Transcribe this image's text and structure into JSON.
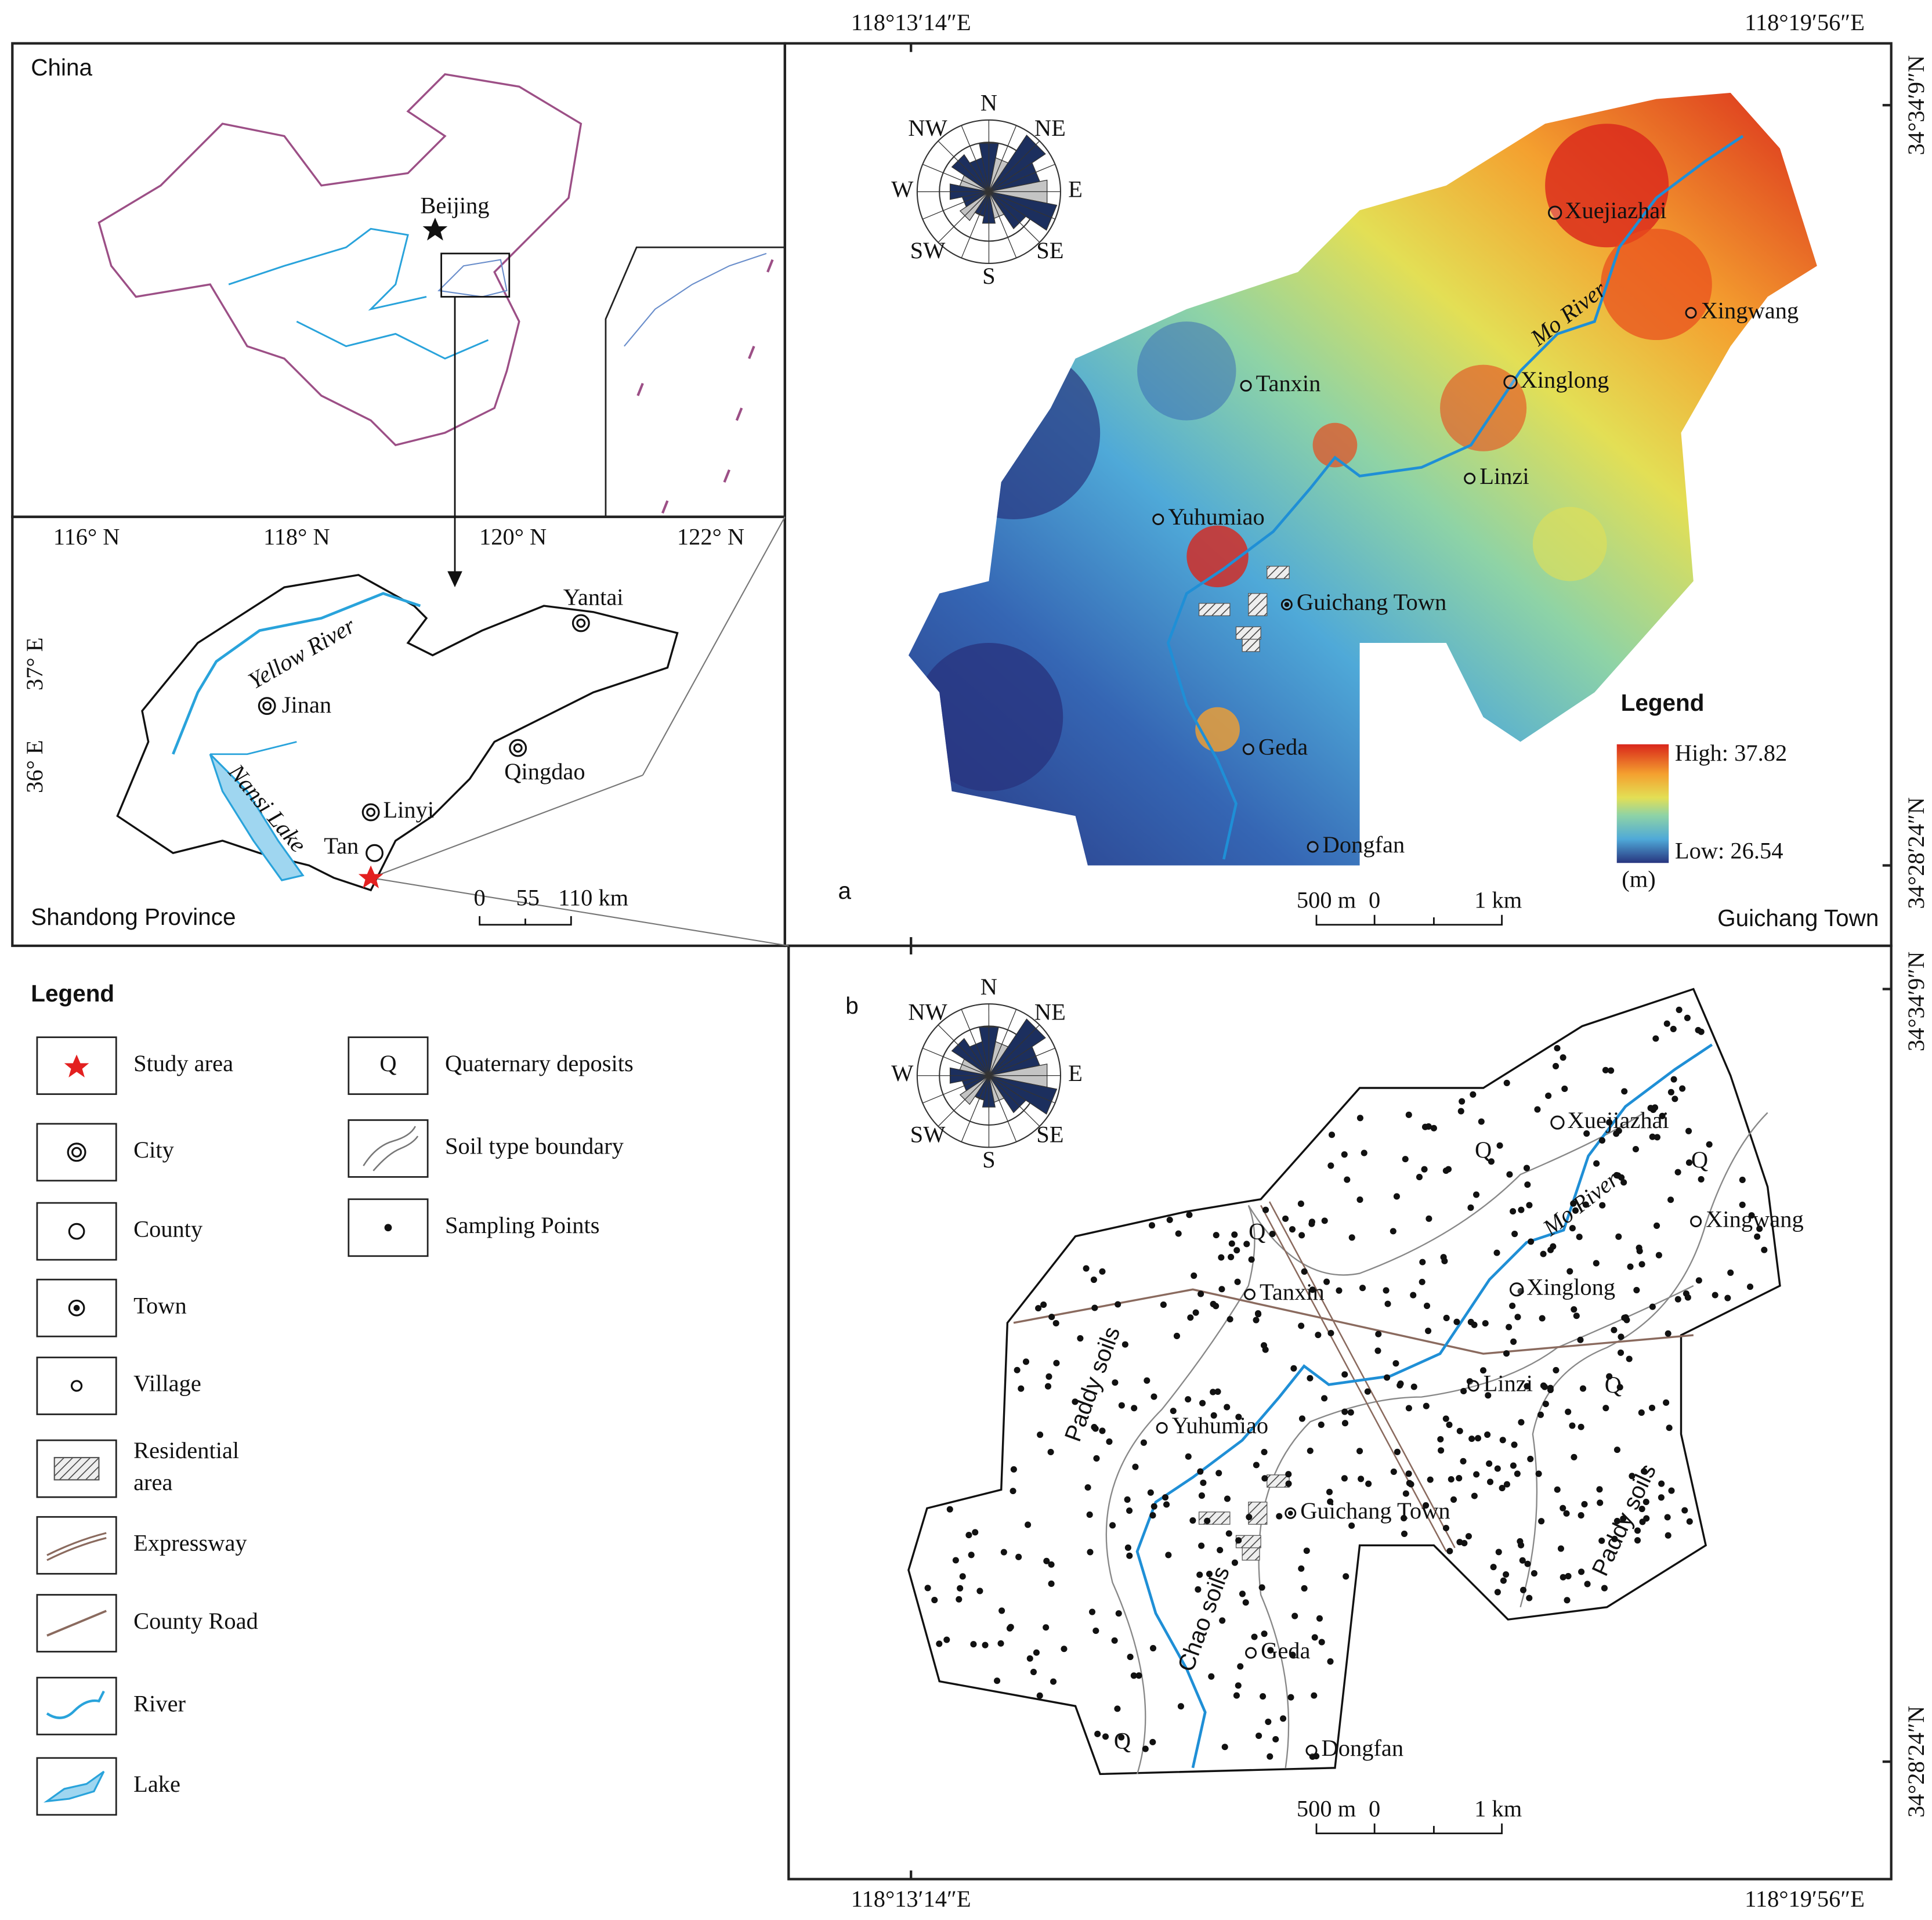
{
  "coordinates": {
    "top": [
      "118°13′14″E",
      "118°19′56″E"
    ],
    "bottom": [
      "118°13′14″E",
      "118°19′56″E"
    ],
    "right_a": [
      "34°34′9″N",
      "34°28′24″N"
    ],
    "right_b": [
      "34°34′9″N",
      "34°28′24″N"
    ]
  },
  "china_inset": {
    "title": "China",
    "capital": "Beijing"
  },
  "shandong_inset": {
    "title": "Shandong Province",
    "longitudes": [
      "116° N",
      "118° N",
      "120° N",
      "122° N"
    ],
    "latitudes": [
      "37° E",
      "36° E"
    ],
    "cities": [
      "Yantai",
      "Jinan",
      "Qingdao",
      "Linyi",
      "Tan"
    ],
    "waters": [
      "Yellow River",
      "Nansi Lake"
    ],
    "scale": [
      "0",
      "55",
      "110 km"
    ]
  },
  "legend": {
    "title": "Legend",
    "items": [
      {
        "lines": [
          "Study area"
        ]
      },
      {
        "lines": [
          "City"
        ]
      },
      {
        "lines": [
          "County"
        ]
      },
      {
        "lines": [
          "Town"
        ]
      },
      {
        "lines": [
          "Village"
        ]
      },
      {
        "lines": [
          "Residential",
          "area"
        ]
      },
      {
        "lines": [
          "Expressway"
        ]
      },
      {
        "lines": [
          "County Road"
        ]
      },
      {
        "lines": [
          "River"
        ]
      },
      {
        "lines": [
          "Lake"
        ]
      },
      {
        "symbol": "Q",
        "lines": [
          "Quaternary deposits"
        ]
      },
      {
        "lines": [
          "Soil type boundary"
        ]
      },
      {
        "lines": [
          "Sampling Points"
        ]
      }
    ]
  },
  "map_a": {
    "label": "a",
    "compass": [
      "N",
      "NE",
      "E",
      "SE",
      "S",
      "SW",
      "W",
      "NW"
    ],
    "places": [
      "Xuejiazhai",
      "Xingwang",
      "Xinglong",
      "Tanxin",
      "Linzi",
      "Yuhumiao",
      "Guichang Town",
      "Geda",
      "Dongfan"
    ],
    "river": "Mo River",
    "legend": {
      "title": "Legend",
      "high": "High: 37.82",
      "low": "Low: 26.54",
      "unit": "(m)"
    },
    "scale": [
      "500 m",
      "0",
      "1 km"
    ],
    "caption": "Guichang Town"
  },
  "map_b": {
    "label": "b",
    "compass": [
      "N",
      "NE",
      "E",
      "SE",
      "S",
      "SW",
      "W",
      "NW"
    ],
    "places": [
      "Xuejiazhai",
      "Xingwang",
      "Xinglong",
      "Tanxin",
      "Linzi",
      "Yuhumiao",
      "Guichang Town",
      "Geda",
      "Dongfan"
    ],
    "river": "Mo River",
    "soils": [
      "Paddy soils",
      "Chao soils",
      "Paddy soils"
    ],
    "quaternary": [
      "Q",
      "Q",
      "Q",
      "Q",
      "Q"
    ],
    "scale": [
      "500 m",
      "0",
      "1 km"
    ]
  }
}
